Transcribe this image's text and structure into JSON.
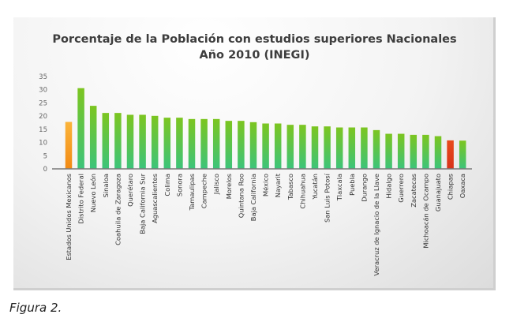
{
  "chart_data": {
    "type": "bar",
    "title": "Porcentaje de la Población con estudios superiores Nacionales",
    "subtitle": "Año 2010 (INEGI)",
    "xlabel": "",
    "ylabel": "",
    "ylim": [
      0,
      35
    ],
    "yticks": [
      0,
      5,
      10,
      15,
      20,
      25,
      30,
      35
    ],
    "grid": false,
    "categories": [
      "Estados Unidos Mexicanos",
      "Distrito Federal",
      "Nuevo León",
      "Sinaloa",
      "Coahuila de Zaragoza",
      "Querétaro",
      "Baja California Sur",
      "Aguascalientes",
      "Colima",
      "Sonora",
      "Tamaulipas",
      "Campeche",
      "Jalisco",
      "Morelos",
      "Quintana Roo",
      "Baja California",
      "México",
      "Nayarit",
      "Tabasco",
      "Chihuahua",
      "Yucatán",
      "San Luis Potosí",
      "Tlaxcala",
      "Puebla",
      "Durango",
      "Veracruz de Ignacio de la Llave",
      "Hidalgo",
      "Guerrero",
      "Zacatecas",
      "Michoacán de Ocampo",
      "Guanajuato",
      "Chiapas",
      "Oaxaca"
    ],
    "values": [
      17.8,
      30.6,
      23.9,
      21.2,
      21.2,
      20.5,
      20.5,
      20.1,
      19.4,
      19.4,
      18.9,
      18.9,
      18.9,
      18.2,
      18.2,
      17.7,
      17.2,
      17.2,
      16.7,
      16.7,
      16.1,
      16.1,
      15.7,
      15.7,
      15.7,
      14.7,
      13.3,
      13.3,
      12.9,
      12.9,
      12.4,
      10.8,
      10.7
    ],
    "colors": {
      "national": "#f7a21b",
      "highest_default": "#7cc520",
      "bar_bottom": "#3cc47a",
      "lowest_highlight": "#e0401a"
    },
    "highlight": {
      "Estados Unidos Mexicanos": "national",
      "Chiapas": "lowest_highlight"
    }
  },
  "caption": "Figura 2."
}
